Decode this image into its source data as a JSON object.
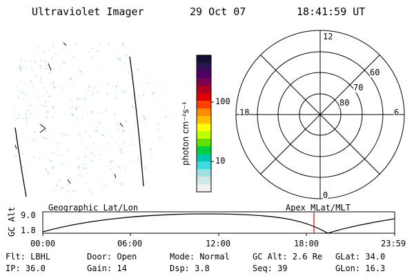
{
  "header": {
    "instrument": "Ultraviolet Imager",
    "date": "29 Oct 07",
    "time": "18:41:59 UT"
  },
  "colors": {
    "background": "#ffffff",
    "speckle": "#a8dede",
    "line": "#000000",
    "marker": "#cc0000"
  },
  "colorbar": {
    "label": "photon cm⁻²s⁻¹",
    "ticks": [
      "100",
      "10"
    ],
    "colors": [
      "#101038",
      "#301050",
      "#500060",
      "#800050",
      "#b00020",
      "#e00000",
      "#ff4000",
      "#ff8c00",
      "#ffbf00",
      "#ffff00",
      "#c0ff00",
      "#60e000",
      "#00d040",
      "#00c8b0",
      "#40d8e0",
      "#a0e0e0",
      "#d0e8e8",
      "#f0f0f0"
    ]
  },
  "polar": {
    "mlt_labels": {
      "top": "12",
      "left": "18",
      "right": "6",
      "bottom": "0"
    },
    "lat_labels": [
      "60",
      "70",
      "80"
    ]
  },
  "timeline": {
    "left_title": "Geographic Lat/Lon",
    "right_title": "Apex MLat/MLT",
    "axis_label": "GC Alt",
    "y_max": "9.0",
    "y_min": "1.8",
    "ticks": [
      "00:00",
      "06:00",
      "12:00",
      "18:00",
      "23:59"
    ]
  },
  "footer": {
    "row1": [
      {
        "label": "Flt:",
        "value": "LBHL"
      },
      {
        "label": "Door:",
        "value": "Open"
      },
      {
        "label": "Mode:",
        "value": "Normal"
      },
      {
        "label": "GC Alt:",
        "value": "2.6 Re"
      },
      {
        "label": "GLat:",
        "value": "34.0"
      }
    ],
    "row2": [
      {
        "label": "IP:",
        "value": "36.0"
      },
      {
        "label": "Gain:",
        "value": "14"
      },
      {
        "label": "Dsp:",
        "value": "3.8"
      },
      {
        "label": "Seq:",
        "value": "39"
      },
      {
        "label": "GLon:",
        "value": "16.3"
      }
    ]
  }
}
